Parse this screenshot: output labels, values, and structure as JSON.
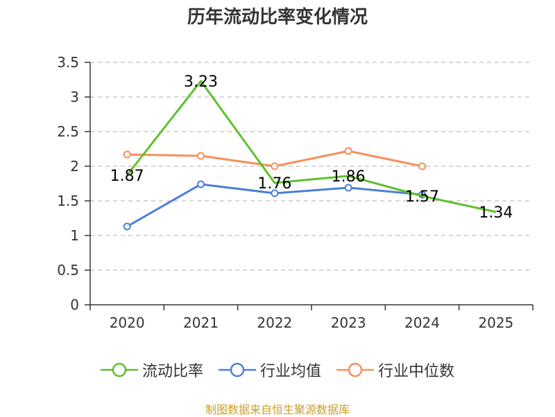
{
  "chart_data": {
    "type": "line",
    "title": "历年流动比率变化情况",
    "categories": [
      "2020",
      "2021",
      "2022",
      "2023",
      "2024",
      "2025"
    ],
    "ylim": [
      0,
      3.5
    ],
    "yticks": [
      "0",
      "0.5",
      "1",
      "1.5",
      "2",
      "2.5",
      "3",
      "3.5"
    ],
    "grid": true,
    "legend_position": "bottom",
    "series": [
      {
        "name": "流动比率",
        "color": "#5cc12a",
        "values": [
          1.87,
          3.23,
          1.76,
          1.86,
          1.57,
          1.34
        ],
        "labels": [
          "1.87",
          "3.23",
          "1.76",
          "1.86",
          "1.57",
          "1.34"
        ],
        "show_markers": false
      },
      {
        "name": "行业均值",
        "color": "#4a7fd8",
        "values": [
          1.13,
          1.74,
          1.61,
          1.69,
          1.59,
          null
        ],
        "show_markers": true
      },
      {
        "name": "行业中位数",
        "color": "#f78f5a",
        "values": [
          2.17,
          2.15,
          2.0,
          2.22,
          2.0,
          null
        ],
        "show_markers": true
      }
    ]
  },
  "footer": {
    "source": "制图数据来自恒生聚源数据库"
  }
}
